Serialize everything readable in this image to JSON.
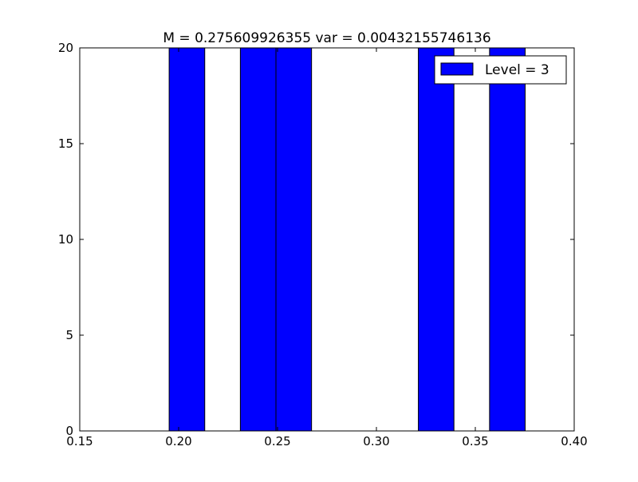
{
  "chart_data": {
    "type": "bar",
    "title": "M = 0.275609926355 var = 0.00432155746136",
    "xlabel": "",
    "ylabel": "",
    "xlim": [
      0.15,
      0.4
    ],
    "ylim": [
      0,
      20
    ],
    "xticks": [
      "0.15",
      "0.20",
      "0.25",
      "0.30",
      "0.35",
      "0.40"
    ],
    "yticks": [
      "0",
      "5",
      "10",
      "15",
      "20"
    ],
    "grid": false,
    "legend": {
      "placement": "top-right",
      "entries": [
        "Level = 3"
      ]
    },
    "series": [
      {
        "name": "Level = 3",
        "color": "#0000ff",
        "bins": [
          {
            "x0": 0.1952,
            "x1": 0.2132,
            "value": 20
          },
          {
            "x0": 0.2312,
            "x1": 0.2492,
            "value": 20
          },
          {
            "x0": 0.2492,
            "x1": 0.2672,
            "value": 20
          },
          {
            "x0": 0.3212,
            "x1": 0.3392,
            "value": 20
          },
          {
            "x0": 0.3572,
            "x1": 0.3752,
            "value": 20
          }
        ]
      }
    ]
  }
}
